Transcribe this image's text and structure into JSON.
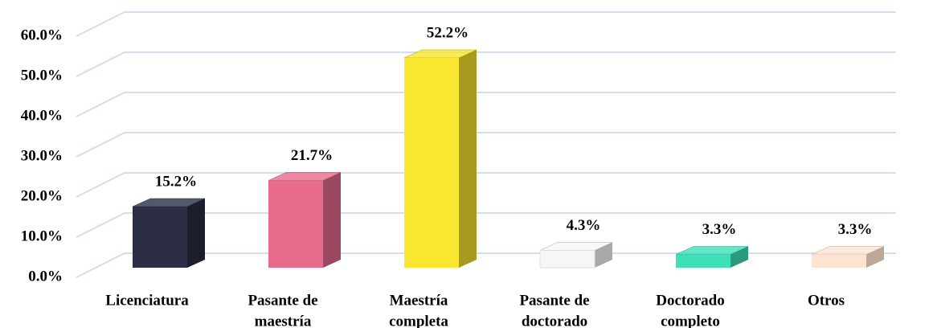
{
  "chart_data": {
    "type": "bar3d",
    "categories": [
      [
        "Licenciatura"
      ],
      [
        "Pasante de",
        "maestría"
      ],
      [
        "Maestría",
        "completa"
      ],
      [
        "Pasante de",
        "doctorado"
      ],
      [
        "Doctorado",
        "completo"
      ],
      [
        "Otros"
      ]
    ],
    "values": [
      15.2,
      21.7,
      52.2,
      4.3,
      3.3,
      3.3
    ],
    "value_labels": [
      "15.2%",
      "21.7%",
      "52.2%",
      "4.3%",
      "3.3%",
      "3.3%"
    ],
    "colors": [
      "#2b2e45",
      "#e86a8d",
      "#f8e62f",
      "#f6f6f6",
      "#3fe0b9",
      "#fde4d2"
    ],
    "side_colors": [
      "#1c1e2e",
      "#9a4760",
      "#a89a1f",
      "#a9a9a9",
      "#2a9a7e",
      "#bfa796"
    ],
    "ylim": [
      0,
      60
    ],
    "yticks": [
      {
        "value": 0,
        "label": "0.0%"
      },
      {
        "value": 10,
        "label": "10.0%"
      },
      {
        "value": 20,
        "label": "20.0%"
      },
      {
        "value": 30,
        "label": "30.0%"
      },
      {
        "value": 40,
        "label": "40.0%"
      },
      {
        "value": 50,
        "label": "50.0%"
      },
      {
        "value": 60,
        "label": "60.0%"
      }
    ],
    "grid": true
  }
}
